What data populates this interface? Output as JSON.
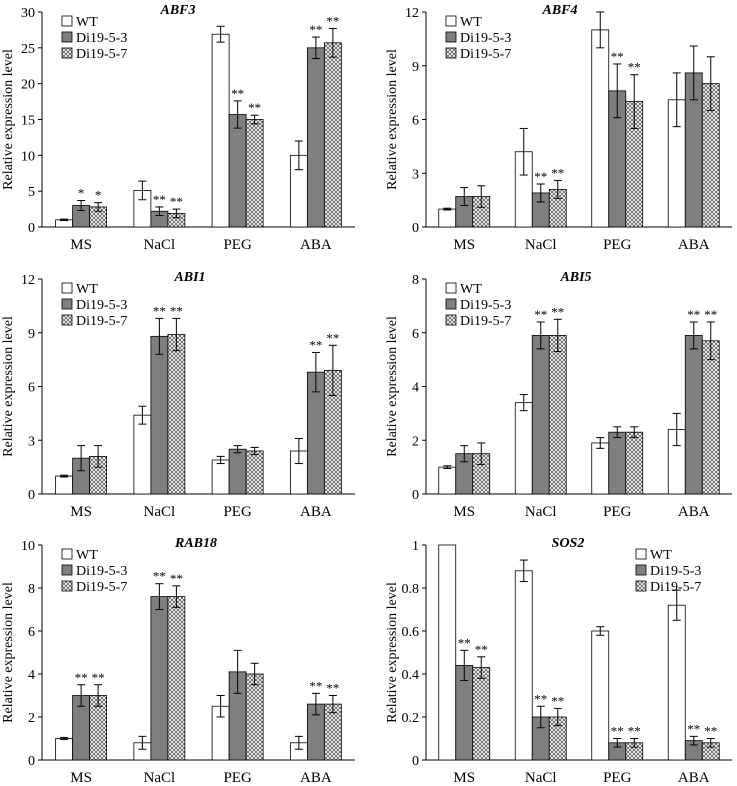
{
  "colors": {
    "wt_fill": "#ffffff",
    "di3_fill": "#7f7f7f",
    "di7_pattern": "crosshatch",
    "axis": "#000000"
  },
  "chart_data": [
    {
      "type": "bar",
      "title": "ABF3",
      "ylabel": "Relative expression level",
      "categories": [
        "MS",
        "NaCl",
        "PEG",
        "ABA"
      ],
      "ylim": [
        0,
        30
      ],
      "yticks": [
        0,
        5,
        10,
        15,
        20,
        25,
        30
      ],
      "legend": "top-left",
      "series": [
        {
          "name": "WT",
          "values": [
            1.0,
            5.1,
            26.9,
            10.0
          ],
          "errors": [
            0.1,
            1.3,
            1.1,
            2.0
          ],
          "marks": [
            "",
            "",
            "",
            ""
          ]
        },
        {
          "name": "Di19-5-3",
          "values": [
            3.0,
            2.2,
            15.7,
            25.0
          ],
          "errors": [
            0.7,
            0.6,
            1.9,
            1.5
          ],
          "marks": [
            "*",
            "**",
            "**",
            "**"
          ]
        },
        {
          "name": "Di19-5-7",
          "values": [
            2.8,
            1.9,
            15.0,
            25.7
          ],
          "errors": [
            0.6,
            0.6,
            0.6,
            2.0
          ],
          "marks": [
            "*",
            "**",
            "**",
            "**"
          ]
        }
      ]
    },
    {
      "type": "bar",
      "title": "ABF4",
      "ylabel": "Relative expression level",
      "categories": [
        "MS",
        "NaCl",
        "PEG",
        "ABA"
      ],
      "ylim": [
        0,
        12
      ],
      "yticks": [
        0,
        3,
        6,
        9,
        12
      ],
      "legend": "top-left",
      "series": [
        {
          "name": "WT",
          "values": [
            1.0,
            4.2,
            11.0,
            7.1
          ],
          "errors": [
            0.05,
            1.3,
            1.0,
            1.5
          ],
          "marks": [
            "",
            "",
            "",
            ""
          ]
        },
        {
          "name": "Di19-5-3",
          "values": [
            1.7,
            1.9,
            7.6,
            8.6
          ],
          "errors": [
            0.5,
            0.5,
            1.5,
            1.5
          ],
          "marks": [
            "",
            "**",
            "**",
            ""
          ]
        },
        {
          "name": "Di19-5-7",
          "values": [
            1.7,
            2.1,
            7.0,
            8.0
          ],
          "errors": [
            0.6,
            0.5,
            1.5,
            1.5
          ],
          "marks": [
            "",
            "**",
            "**",
            ""
          ]
        }
      ]
    },
    {
      "type": "bar",
      "title": "ABI1",
      "ylabel": "Relative expression level",
      "categories": [
        "MS",
        "NaCl",
        "PEG",
        "ABA"
      ],
      "ylim": [
        0,
        12
      ],
      "yticks": [
        0,
        3,
        6,
        9,
        12
      ],
      "legend": "top-left",
      "series": [
        {
          "name": "WT",
          "values": [
            1.0,
            4.4,
            1.9,
            2.4
          ],
          "errors": [
            0.05,
            0.5,
            0.2,
            0.7
          ],
          "marks": [
            "",
            "",
            "",
            ""
          ]
        },
        {
          "name": "Di19-5-3",
          "values": [
            2.0,
            8.8,
            2.5,
            6.8
          ],
          "errors": [
            0.7,
            1.0,
            0.2,
            1.1
          ],
          "marks": [
            "",
            "**",
            "",
            "**"
          ]
        },
        {
          "name": "Di19-5-7",
          "values": [
            2.1,
            8.9,
            2.4,
            6.9
          ],
          "errors": [
            0.6,
            0.9,
            0.2,
            1.4
          ],
          "marks": [
            "",
            "**",
            "",
            "**"
          ]
        }
      ]
    },
    {
      "type": "bar",
      "title": "ABI5",
      "ylabel": "Relative expression level",
      "categories": [
        "MS",
        "NaCl",
        "PEG",
        "ABA"
      ],
      "ylim": [
        0,
        8
      ],
      "yticks": [
        0,
        2,
        4,
        6,
        8
      ],
      "legend": "top-left",
      "series": [
        {
          "name": "WT",
          "values": [
            1.0,
            3.4,
            1.9,
            2.4
          ],
          "errors": [
            0.05,
            0.3,
            0.2,
            0.6
          ],
          "marks": [
            "",
            "",
            "",
            ""
          ]
        },
        {
          "name": "Di19-5-3",
          "values": [
            1.5,
            5.9,
            2.3,
            5.9
          ],
          "errors": [
            0.3,
            0.5,
            0.2,
            0.5
          ],
          "marks": [
            "",
            "**",
            "",
            "**"
          ]
        },
        {
          "name": "Di19-5-7",
          "values": [
            1.5,
            5.9,
            2.3,
            5.7
          ],
          "errors": [
            0.4,
            0.6,
            0.2,
            0.7
          ],
          "marks": [
            "",
            "**",
            "",
            "**"
          ]
        }
      ]
    },
    {
      "type": "bar",
      "title": "RAB18",
      "ylabel": "Relative expression level",
      "categories": [
        "MS",
        "NaCl",
        "PEG",
        "ABA"
      ],
      "ylim": [
        0,
        10
      ],
      "yticks": [
        0,
        2,
        4,
        6,
        8,
        10
      ],
      "legend": "top-left",
      "series": [
        {
          "name": "WT",
          "values": [
            1.0,
            0.8,
            2.5,
            0.8
          ],
          "errors": [
            0.05,
            0.3,
            0.5,
            0.3
          ],
          "marks": [
            "",
            "",
            "",
            ""
          ]
        },
        {
          "name": "Di19-5-3",
          "values": [
            3.0,
            7.6,
            4.1,
            2.6
          ],
          "errors": [
            0.5,
            0.6,
            1.0,
            0.5
          ],
          "marks": [
            "**",
            "**",
            "",
            "**"
          ]
        },
        {
          "name": "Di19-5-7",
          "values": [
            3.0,
            7.6,
            4.0,
            2.6
          ],
          "errors": [
            0.5,
            0.5,
            0.5,
            0.4
          ],
          "marks": [
            "**",
            "**",
            "",
            "**"
          ]
        }
      ]
    },
    {
      "type": "bar",
      "title": "SOS2",
      "ylabel": "Relative expression level",
      "categories": [
        "MS",
        "NaCl",
        "PEG",
        "ABA"
      ],
      "ylim": [
        0,
        1
      ],
      "yticks": [
        0,
        0.2,
        0.4,
        0.6,
        0.8,
        1
      ],
      "legend": "top-right",
      "series": [
        {
          "name": "WT",
          "values": [
            1.0,
            0.88,
            0.6,
            0.72
          ],
          "errors": [
            0.0,
            0.05,
            0.02,
            0.07
          ],
          "marks": [
            "",
            "",
            "",
            ""
          ]
        },
        {
          "name": "Di19-5-3",
          "values": [
            0.44,
            0.2,
            0.08,
            0.09
          ],
          "errors": [
            0.07,
            0.05,
            0.02,
            0.02
          ],
          "marks": [
            "**",
            "**",
            "**",
            "**"
          ]
        },
        {
          "name": "Di19-5-7",
          "values": [
            0.43,
            0.2,
            0.08,
            0.08
          ],
          "errors": [
            0.05,
            0.04,
            0.02,
            0.02
          ],
          "marks": [
            "**",
            "**",
            "**",
            "**"
          ]
        }
      ]
    }
  ]
}
